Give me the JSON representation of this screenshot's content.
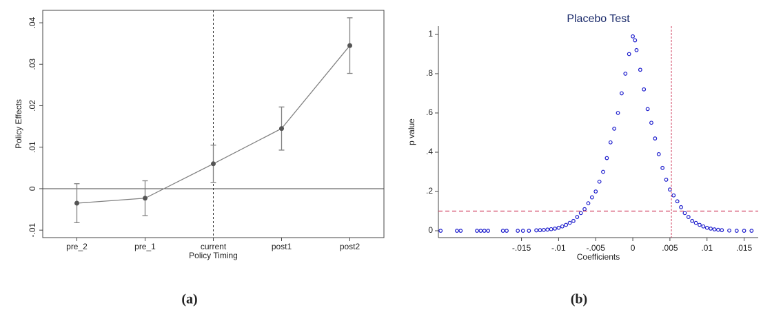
{
  "chart_data": [
    {
      "type": "line",
      "caption": "(a)",
      "xlabel": "Policy Timing",
      "ylabel": "Policy Effects",
      "categories": [
        "pre_2",
        "pre_1",
        "current",
        "post1",
        "post2"
      ],
      "values": [
        -0.0035,
        -0.0023,
        0.006,
        0.0145,
        0.0345
      ],
      "errors": [
        0.0047,
        0.0042,
        0.0045,
        0.0052,
        0.0067
      ],
      "color": "#808080",
      "marker_color": "#555555",
      "ylim": [
        -0.0118,
        0.043
      ],
      "yticks": [
        {
          "value": -0.01,
          "label": "-.01"
        },
        0,
        {
          "value": 0.01,
          "label": ".01"
        },
        {
          "value": 0.02,
          "label": ".02"
        },
        {
          "value": 0.03,
          "label": ".03"
        },
        {
          "value": 0.04,
          "label": ".04"
        }
      ],
      "yline": 0,
      "xline_index": 2
    },
    {
      "type": "scatter",
      "caption": "(b)",
      "title": "Placebo Test",
      "xlabel": "Coefficients",
      "ylabel": "p value",
      "x": [
        -0.0259,
        -0.0237,
        -0.0232,
        -0.021,
        -0.0205,
        -0.02,
        -0.0195,
        -0.0175,
        -0.017,
        -0.0155,
        -0.0148,
        -0.014,
        -0.013,
        -0.0125,
        -0.012,
        -0.0115,
        -0.011,
        -0.0105,
        -0.01,
        -0.0095,
        -0.009,
        -0.0085,
        -0.008,
        -0.0075,
        -0.007,
        -0.0065,
        -0.006,
        -0.0055,
        -0.005,
        -0.0045,
        -0.004,
        -0.0035,
        -0.003,
        -0.0025,
        -0.002,
        -0.0015,
        -0.001,
        -0.0005,
        0,
        0.0003,
        0.0005,
        0.001,
        0.0015,
        0.002,
        0.0025,
        0.003,
        0.0035,
        0.004,
        0.0045,
        0.005,
        0.0055,
        0.006,
        0.0065,
        0.007,
        0.0075,
        0.008,
        0.0085,
        0.009,
        0.0095,
        0.01,
        0.0105,
        0.011,
        0.0115,
        0.012,
        0.013,
        0.014,
        0.015,
        0.016
      ],
      "values": [
        0,
        0,
        0,
        0,
        0,
        0,
        0,
        0,
        0,
        0,
        0,
        0,
        0.002,
        0.003,
        0.004,
        0.006,
        0.008,
        0.011,
        0.015,
        0.022,
        0.03,
        0.04,
        0.05,
        0.07,
        0.09,
        0.11,
        0.14,
        0.17,
        0.2,
        0.25,
        0.3,
        0.37,
        0.45,
        0.52,
        0.6,
        0.7,
        0.8,
        0.9,
        0.99,
        0.97,
        0.92,
        0.82,
        0.72,
        0.62,
        0.55,
        0.47,
        0.39,
        0.32,
        0.26,
        0.21,
        0.18,
        0.15,
        0.12,
        0.09,
        0.07,
        0.05,
        0.04,
        0.03,
        0.022,
        0.015,
        0.011,
        0.007,
        0.005,
        0.003,
        0.001,
        0,
        0,
        0
      ],
      "color": "#1a1acc",
      "line_color": "#d04060",
      "xlim": [
        -0.0262,
        0.0169
      ],
      "ylim": [
        -0.035,
        1.042
      ],
      "xticks": [
        {
          "value": -0.015,
          "label": "-.015"
        },
        {
          "value": -0.01,
          "label": "-.01"
        },
        {
          "value": -0.005,
          "label": "-.005"
        },
        0,
        {
          "value": 0.005,
          "label": ".005"
        },
        {
          "value": 0.01,
          "label": ".01"
        },
        {
          "value": 0.015,
          "label": ".015"
        }
      ],
      "yticks": [
        0,
        {
          "value": 0.2,
          "label": ".2"
        },
        {
          "value": 0.4,
          "label": ".4"
        },
        {
          "value": 0.6,
          "label": ".6"
        },
        {
          "value": 0.8,
          "label": ".8"
        },
        1
      ],
      "xline": 0.0052,
      "yline": 0.1
    }
  ]
}
